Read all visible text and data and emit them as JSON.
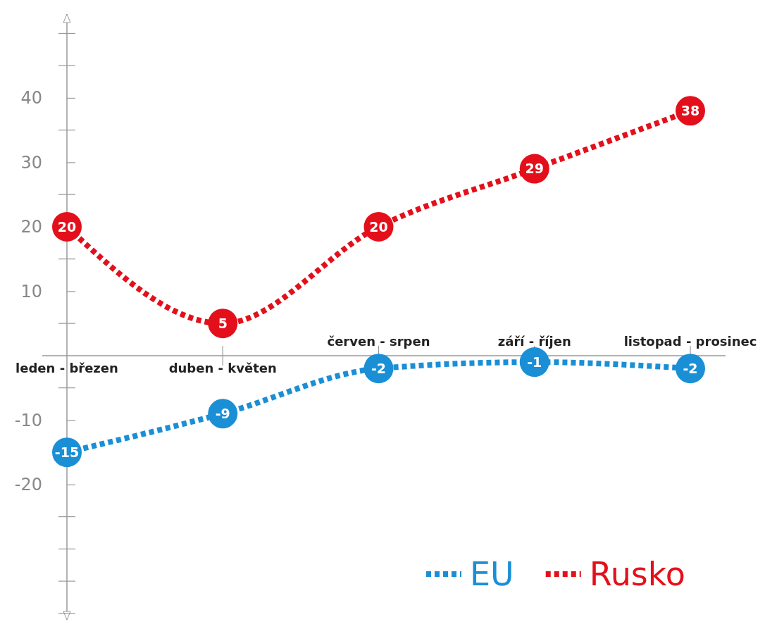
{
  "chart_data": {
    "type": "line",
    "categories": [
      "leden - březen",
      "duben - květen",
      "červen - srpen",
      "září - říjen",
      "listopad - prosinec"
    ],
    "series": [
      {
        "name": "EU",
        "color": "#1a8fd6",
        "values": [
          -15,
          -9,
          -2,
          -1,
          -2
        ]
      },
      {
        "name": "Rusko",
        "color": "#e3101b",
        "values": [
          20,
          5,
          20,
          29,
          38
        ]
      }
    ],
    "ylim": [
      -41,
      53
    ],
    "yticks": [
      -20,
      -10,
      10,
      20,
      30,
      40
    ],
    "data_labels": true,
    "marker": "circle",
    "line_style": "dotted",
    "legend": "bottom right",
    "grid": false
  }
}
